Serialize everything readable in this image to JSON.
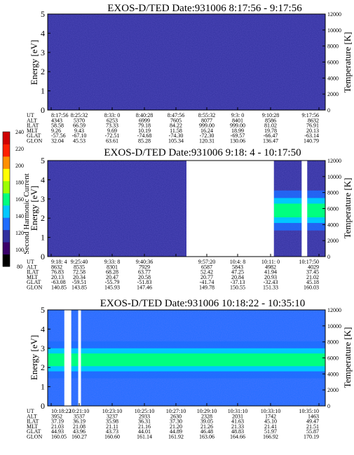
{
  "colors": {
    "background_level": "#3a23a0",
    "gap": "#ffffff",
    "band": "#00ff80",
    "band_edge": "#00c8ff",
    "midlevel": "#1f6cff"
  },
  "colorbar": {
    "label": "Second Harmonic Current",
    "ticks": [
      "80",
      "100",
      "120",
      "140",
      "160",
      "180",
      "200",
      "220",
      "240"
    ],
    "range": [
      80,
      240
    ],
    "colors": [
      "#000000",
      "#3a006a",
      "#30309e",
      "#1f6cff",
      "#00c8ff",
      "#00ff80",
      "#9cff00",
      "#ffff00",
      "#ff9000",
      "#ff2000",
      "#d00000"
    ]
  },
  "chart_data": [
    {
      "type": "heatmap",
      "title": "EXOS-D/TED   Date:931006  8:17:56 - 9:17:56",
      "ylabel": "Energy [eV]",
      "y2label": "Temperature [K]",
      "ylim": [
        0,
        5
      ],
      "y2lim": [
        0,
        12000
      ],
      "yticks": [
        "0",
        "1",
        "2",
        "3",
        "4",
        "5"
      ],
      "y2ticks": [
        "0",
        "2000",
        "4000",
        "6000",
        "8000",
        "10000",
        "12000"
      ],
      "dominant_level": 110,
      "gaps": [],
      "band": null,
      "row_labels": [
        "UT",
        "ALT",
        "ILAT",
        "MLT",
        "GLAT",
        "GLON"
      ],
      "columns": [
        [
          "8:17:56",
          "4343",
          "58.58",
          "9.26",
          "-57.56",
          "32.04"
        ],
        [
          "8:25:32",
          "5370",
          "66.59",
          "9.43",
          "-67.10",
          "45.53"
        ],
        [
          "8:33: 0",
          "6253",
          "73.33",
          "9.69",
          "-72.51",
          "63.61"
        ],
        [
          "8:40:28",
          "6999",
          "79.18",
          "10.19",
          "-74.68",
          "85.28"
        ],
        [
          "8:47:56",
          "7605",
          "84.22",
          "11.58",
          "-74.30",
          "105.34"
        ],
        [
          "8:55:32",
          "8077",
          "999.00",
          "16.24",
          "-72.30",
          "120.31"
        ],
        [
          "9:3: 0",
          "8401",
          "999.00",
          "18.99",
          "-69.57",
          "130.06"
        ],
        [
          "9:10:28",
          "8586",
          "81.02",
          "19.78",
          "-66.47",
          "136.47"
        ],
        [
          "9:17:56",
          "8632",
          "76.91",
          "20.13",
          "-63.14",
          "140.79"
        ]
      ]
    },
    {
      "type": "heatmap",
      "title": "EXOS-D/TED   Date:931006  9:18: 4 - 10:17:50",
      "ylabel": "Energy [eV]",
      "y2label": "Temperature [K]",
      "ylim": [
        0,
        5
      ],
      "y2lim": [
        0,
        12000
      ],
      "yticks": [
        "0",
        "1",
        "2",
        "3",
        "4",
        "5"
      ],
      "y2ticks": [
        "0",
        "2000",
        "4000",
        "6000",
        "8000",
        "10000",
        "12000"
      ],
      "dominant_level": 110,
      "gaps": [
        [
          0.5,
          0.815
        ],
        [
          0.915,
          0.935
        ]
      ],
      "band": {
        "x_start": 0.815,
        "energy_center": 2.4,
        "energy_width": 1.3
      },
      "row_labels": [
        "UT",
        "ALT",
        "ILAT",
        "MLT",
        "GLAT",
        "GLON"
      ],
      "columns": [
        [
          "9:18: 4",
          "8632",
          "76.83",
          "20.13",
          "-63.08",
          "140.85"
        ],
        [
          "9:25:40",
          "8535",
          "72.58",
          "20.34",
          "-59.51",
          "143.85"
        ],
        [
          "9:33: 8",
          "8301",
          "68.28",
          "20.47",
          "-55.79",
          "145.93"
        ],
        [
          "9:40:36",
          "7929",
          "63.77",
          "20.58",
          "-51.83",
          "147.46"
        ],
        [
          "",
          "",
          "",
          "",
          "",
          ""
        ],
        [
          "9:57:20",
          "6587",
          "52.42",
          "20.77",
          "-41.74",
          "149.78"
        ],
        [
          "10:4: 8",
          "5843",
          "47.25",
          "20.84",
          "-37.13",
          "150.55"
        ],
        [
          "10:11: 0",
          "4982",
          "41.94",
          "20.93",
          "-32.43",
          "151.33"
        ],
        [
          "10:17:50",
          "4029",
          "37.45",
          "21.02",
          "45.18",
          "160.03"
        ]
      ]
    },
    {
      "type": "heatmap",
      "title": "EXOS-D/TED   Date:931006  10:18:22 - 10:35:10",
      "ylabel": "Energy [eV]",
      "y2label": "Temperature [K]",
      "ylim": [
        0,
        5
      ],
      "y2lim": [
        0,
        12000
      ],
      "yticks": [
        "0",
        "1",
        "2",
        "3",
        "4",
        "5"
      ],
      "y2ticks": [
        "0",
        "2000",
        "4000",
        "6000",
        "8000",
        "10000",
        "12000"
      ],
      "dominant_level": 135,
      "gaps": [
        [
          0.06,
          0.085
        ],
        [
          0.11,
          0.12
        ]
      ],
      "band": {
        "x_start": 0.0,
        "energy_center": 2.4,
        "energy_width": 1.2
      },
      "row_labels": [
        "UT",
        "ALT",
        "ILAT",
        "MLT",
        "GLAT",
        "GLON"
      ],
      "columns": [
        [
          "10:18:22",
          "3952",
          "37.19",
          "21.03",
          "44.93",
          "160.05"
        ],
        [
          "10:21:10",
          "3537",
          "36.19",
          "21.08",
          "43.96",
          "160.27"
        ],
        [
          "10:23:10",
          "3237",
          "35.98",
          "21.11",
          "43.73",
          "160.60"
        ],
        [
          "10:25:10",
          "2933",
          "36.31",
          "21.16",
          "44.01",
          "161.14"
        ],
        [
          "10:27:10",
          "2630",
          "37.30",
          "21.20",
          "44.89",
          "161.92"
        ],
        [
          "10:29:10",
          "2328",
          "39.05",
          "21.26",
          "46.48",
          "163.06"
        ],
        [
          "10:31:10",
          "2031",
          "41.63",
          "21.33",
          "48.83",
          "164.66"
        ],
        [
          "10:33:10",
          "1742",
          "45.10",
          "21.41",
          "51.97",
          "166.92"
        ],
        [
          "10:35:10",
          "1463",
          "49.47",
          "21.51",
          "55.87",
          "170.19"
        ]
      ]
    }
  ]
}
